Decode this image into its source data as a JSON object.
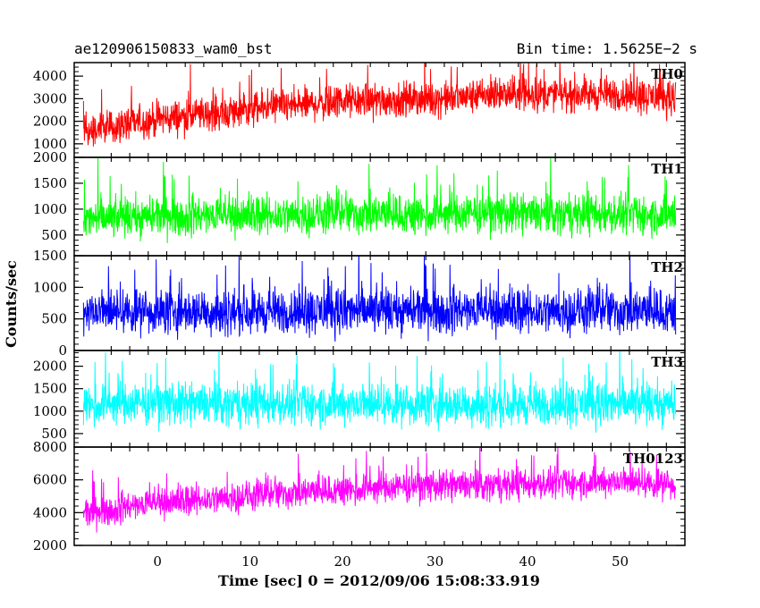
{
  "header": {
    "left_title": "ae120906150833_wam0_bst",
    "right_title": "Bin time: 1.5625E−2 s"
  },
  "axes": {
    "ylabel": "Counts/sec",
    "xlabel": "Time [sec] 0 = 2012/09/06 15:08:33.919",
    "x_ticks": [
      "0",
      "10",
      "20",
      "30",
      "40",
      "50"
    ]
  },
  "chart_data": {
    "type": "line",
    "x_range": [
      -9,
      57
    ],
    "data_x_range": [
      -8,
      56
    ],
    "xlabel": "Time [sec] 0 = 2012/09/06 15:08:33.919",
    "ylabel": "Counts/sec",
    "title": "ae120906150833_wam0_bst",
    "subtitle": "Bin time: 1.5625E−2 s",
    "panels": [
      {
        "name": "TH0",
        "color": "#ff0000",
        "ylim": [
          400,
          4600
        ],
        "yticks": [
          1000,
          2000,
          3000,
          4000
        ],
        "trend": [
          [
            -8,
            1500
          ],
          [
            0,
            2100
          ],
          [
            10,
            2500
          ],
          [
            20,
            2900
          ],
          [
            30,
            3000
          ],
          [
            40,
            3200
          ],
          [
            50,
            3200
          ],
          [
            56,
            3000
          ]
        ],
        "spread": 900
      },
      {
        "name": "TH1",
        "color": "#00ff00",
        "ylim": [
          100,
          2000
        ],
        "yticks": [
          500,
          1000,
          1500,
          2000
        ],
        "trend": [
          [
            -8,
            800
          ],
          [
            0,
            850
          ],
          [
            20,
            900
          ],
          [
            40,
            900
          ],
          [
            56,
            880
          ]
        ],
        "spread": 450
      },
      {
        "name": "TH2",
        "color": "#0000ff",
        "ylim": [
          0,
          1500
        ],
        "yticks": [
          0,
          500,
          1000,
          1500
        ],
        "trend": [
          [
            -8,
            620
          ],
          [
            56,
            620
          ]
        ],
        "spread": 420
      },
      {
        "name": "TH3",
        "color": "#00ffff",
        "ylim": [
          200,
          2350
        ],
        "yticks": [
          500,
          1000,
          1500,
          2000
        ],
        "trend": [
          [
            -8,
            1150
          ],
          [
            56,
            1150
          ]
        ],
        "spread": 550
      },
      {
        "name": "TH0123",
        "color": "#ff00ff",
        "ylim": [
          2000,
          8000
        ],
        "yticks": [
          2000,
          4000,
          6000,
          8000
        ],
        "trend": [
          [
            -8,
            3900
          ],
          [
            0,
            4600
          ],
          [
            10,
            5000
          ],
          [
            20,
            5400
          ],
          [
            30,
            5600
          ],
          [
            40,
            5700
          ],
          [
            50,
            5900
          ],
          [
            56,
            5700
          ]
        ],
        "spread": 1100
      }
    ]
  }
}
